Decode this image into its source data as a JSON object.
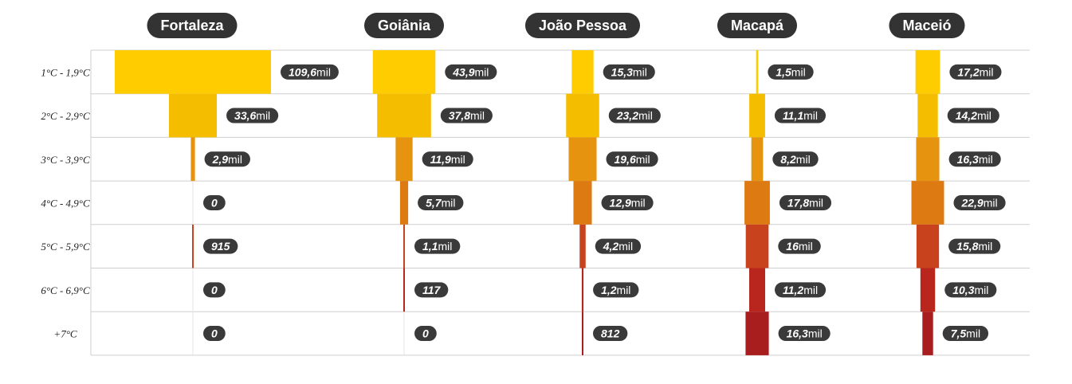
{
  "chart_data": {
    "type": "bar",
    "title": "",
    "unit": "mil",
    "categories": [
      "1°C - 1,9°C",
      "2°C - 2,9°C",
      "3°C - 3,9°C",
      "4°C - 4,9°C",
      "5°C - 5,9°C",
      "6°C - 6,9°C",
      "+7°C"
    ],
    "colors": [
      "#ffcc00",
      "#f5bd00",
      "#e6930f",
      "#de7a12",
      "#c8421e",
      "#b8261e",
      "#a81d1d"
    ],
    "series": [
      {
        "name": "Fortaleza",
        "values": [
          109600,
          33600,
          2900,
          0,
          915,
          0,
          0
        ],
        "labels": [
          {
            "num": "109,6",
            "unit": "mil"
          },
          {
            "num": "33,6",
            "unit": "mil"
          },
          {
            "num": "2,9",
            "unit": "mil"
          },
          {
            "num": "0",
            "unit": ""
          },
          {
            "num": "915",
            "unit": ""
          },
          {
            "num": "0",
            "unit": ""
          },
          {
            "num": "0",
            "unit": ""
          }
        ]
      },
      {
        "name": "Goiânia",
        "values": [
          43900,
          37800,
          11900,
          5700,
          1100,
          117,
          0
        ],
        "labels": [
          {
            "num": "43,9",
            "unit": "mil"
          },
          {
            "num": "37,8",
            "unit": "mil"
          },
          {
            "num": "11,9",
            "unit": "mil"
          },
          {
            "num": "5,7",
            "unit": "mil"
          },
          {
            "num": "1,1",
            "unit": "mil"
          },
          {
            "num": "117",
            "unit": ""
          },
          {
            "num": "0",
            "unit": ""
          }
        ]
      },
      {
        "name": "João Pessoa",
        "values": [
          15300,
          23200,
          19600,
          12900,
          4200,
          1200,
          812
        ],
        "labels": [
          {
            "num": "15,3",
            "unit": "mil"
          },
          {
            "num": "23,2",
            "unit": "mil"
          },
          {
            "num": "19,6",
            "unit": "mil"
          },
          {
            "num": "12,9",
            "unit": "mil"
          },
          {
            "num": "4,2",
            "unit": "mil"
          },
          {
            "num": "1,2",
            "unit": "mil"
          },
          {
            "num": "812",
            "unit": ""
          }
        ]
      },
      {
        "name": "Macapá",
        "values": [
          1500,
          11100,
          8200,
          17800,
          16000,
          11200,
          16300
        ],
        "labels": [
          {
            "num": "1,5",
            "unit": "mil"
          },
          {
            "num": "11,1",
            "unit": "mil"
          },
          {
            "num": "8,2",
            "unit": "mil"
          },
          {
            "num": "17,8",
            "unit": "mil"
          },
          {
            "num": "16",
            "unit": "mil"
          },
          {
            "num": "11,2",
            "unit": "mil"
          },
          {
            "num": "16,3",
            "unit": "mil"
          }
        ]
      },
      {
        "name": "Maceió",
        "values": [
          17200,
          14200,
          16300,
          22900,
          15800,
          10300,
          7500
        ],
        "labels": [
          {
            "num": "17,2",
            "unit": "mil"
          },
          {
            "num": "14,2",
            "unit": "mil"
          },
          {
            "num": "16,3",
            "unit": "mil"
          },
          {
            "num": "22,9",
            "unit": "mil"
          },
          {
            "num": "15,8",
            "unit": "mil"
          },
          {
            "num": "10,3",
            "unit": "mil"
          },
          {
            "num": "7,5",
            "unit": "mil"
          }
        ]
      }
    ]
  }
}
